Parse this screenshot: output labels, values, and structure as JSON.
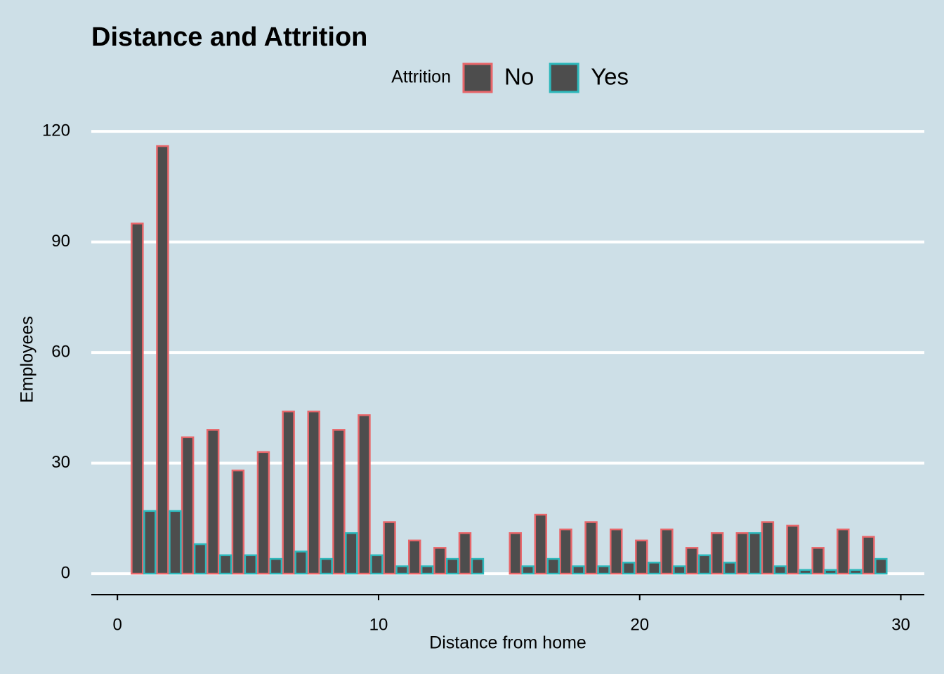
{
  "chart_data": {
    "type": "bar",
    "title": "Distance and Attrition",
    "x_label": "Distance from home",
    "y_label": "Employees",
    "legend_title": "Attrition",
    "legend_position": "top",
    "grid": true,
    "x": [
      1.0,
      1.97,
      2.93,
      3.9,
      4.86,
      5.83,
      6.79,
      7.76,
      8.72,
      9.69,
      10.66,
      11.62,
      12.59,
      13.55,
      14.52,
      15.48,
      16.45,
      17.41,
      18.38,
      19.34,
      20.31,
      21.28,
      22.24,
      23.21,
      24.17,
      25.14,
      26.1,
      27.07,
      28.03,
      29.0
    ],
    "series": [
      {
        "name": "No",
        "color": "#e8666a",
        "values": [
          95,
          116,
          37,
          39,
          28,
          33,
          44,
          44,
          39,
          43,
          14,
          9,
          7,
          11,
          0,
          11,
          16,
          12,
          14,
          12,
          9,
          12,
          7,
          11,
          11,
          14,
          13,
          7,
          12,
          10
        ]
      },
      {
        "name": "Yes",
        "color": "#2db8bb",
        "values": [
          17,
          17,
          8,
          5,
          5,
          4,
          6,
          4,
          11,
          5,
          2,
          2,
          4,
          4,
          0,
          2,
          4,
          2,
          2,
          3,
          3,
          2,
          5,
          3,
          11,
          2,
          1,
          1,
          1,
          4
        ]
      }
    ],
    "bar_fill": "#4d4d4d",
    "xlim": [
      -1,
      30.9
    ],
    "xticks": [
      0,
      10,
      20,
      30
    ],
    "ylim": [
      -5.7,
      122.3
    ],
    "yticks": [
      0,
      30,
      60,
      90,
      120
    ]
  }
}
